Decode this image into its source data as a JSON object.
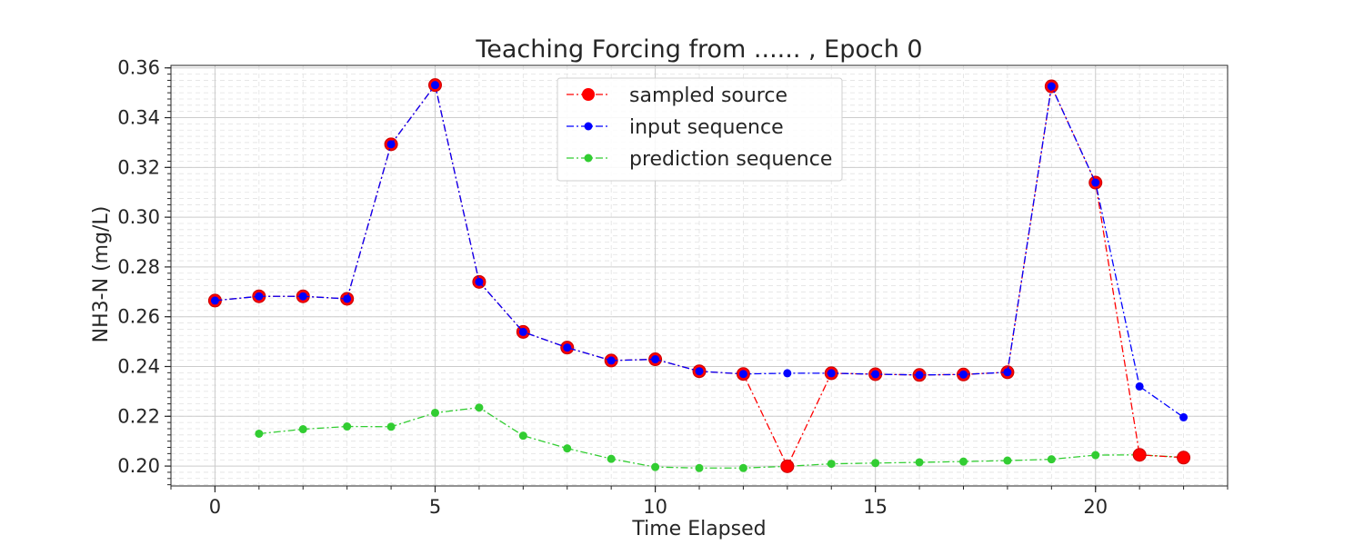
{
  "chart_data": {
    "type": "line",
    "title": "Teaching Forcing from ...... , Epoch 0",
    "xlabel": "Time Elapsed",
    "ylabel": "NH3-N (mg/L)",
    "xlim": [
      -1,
      23
    ],
    "ylim": [
      0.192,
      0.361
    ],
    "xticks": [
      0,
      5,
      10,
      15,
      20
    ],
    "xtick_labels": [
      "0",
      "5",
      "10",
      "15",
      "20"
    ],
    "yticks": [
      0.2,
      0.22,
      0.24,
      0.26,
      0.28,
      0.3,
      0.32,
      0.34,
      0.36
    ],
    "ytick_labels": [
      "0.20",
      "0.22",
      "0.24",
      "0.26",
      "0.28",
      "0.30",
      "0.32",
      "0.34",
      "0.36"
    ],
    "grid": "major and minor, dashed",
    "legend_position": "top-center",
    "series": [
      {
        "name": "sampled source",
        "color": "#ff0000",
        "marker": "large-circle",
        "x": [
          0,
          1,
          2,
          3,
          4,
          5,
          6,
          7,
          8,
          9,
          10,
          11,
          12,
          13,
          14,
          15,
          16,
          17,
          18,
          19,
          20,
          21,
          22
        ],
        "y": [
          0.2665,
          0.2682,
          0.2682,
          0.2672,
          0.3293,
          0.3531,
          0.274,
          0.2539,
          0.2476,
          0.2424,
          0.2429,
          0.2381,
          0.237,
          0.1999,
          0.2373,
          0.2369,
          0.2366,
          0.2368,
          0.2377,
          0.3526,
          0.3139,
          0.2045,
          0.2034
        ]
      },
      {
        "name": "input sequence",
        "color": "#0000ff",
        "marker": "small-circle",
        "x": [
          0,
          1,
          2,
          3,
          4,
          5,
          6,
          7,
          8,
          9,
          10,
          11,
          12,
          13,
          14,
          15,
          16,
          17,
          18,
          19,
          20,
          21,
          22
        ],
        "y": [
          0.2665,
          0.2682,
          0.2682,
          0.2672,
          0.3293,
          0.3531,
          0.274,
          0.2539,
          0.2476,
          0.2424,
          0.2429,
          0.2381,
          0.237,
          0.2373,
          0.2373,
          0.2369,
          0.2366,
          0.2368,
          0.2377,
          0.3526,
          0.3139,
          0.232,
          0.2196
        ]
      },
      {
        "name": "prediction sequence",
        "color": "#32cd32",
        "marker": "small-circle",
        "x": [
          1,
          2,
          3,
          4,
          5,
          6,
          7,
          8,
          9,
          10,
          11,
          12,
          13,
          14,
          15,
          16,
          17,
          18,
          19,
          20,
          21,
          22
        ],
        "y": [
          0.213,
          0.2148,
          0.2159,
          0.2158,
          0.2214,
          0.2235,
          0.2122,
          0.2071,
          0.2029,
          0.1996,
          0.1992,
          0.1992,
          0.1999,
          0.2009,
          0.2012,
          0.2015,
          0.2018,
          0.2022,
          0.2027,
          0.2044,
          0.2045,
          0.2035
        ]
      }
    ]
  }
}
